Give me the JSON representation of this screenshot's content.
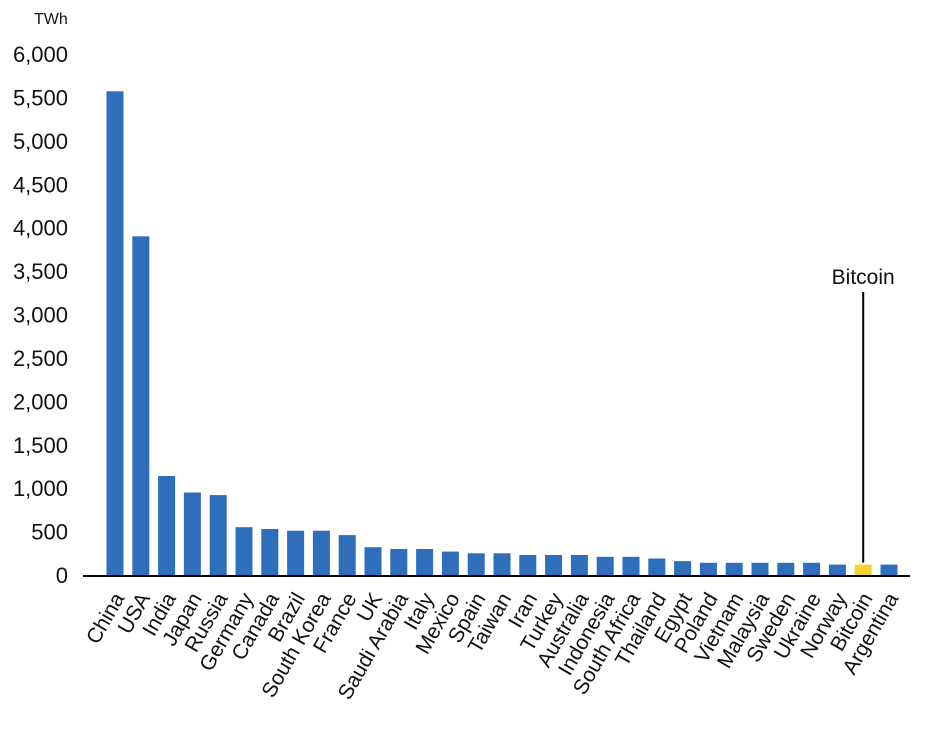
{
  "chart_data": {
    "type": "bar",
    "ylabel": "TWh",
    "ylim": [
      0,
      6000
    ],
    "yticks": [
      0,
      500,
      1000,
      1500,
      2000,
      2500,
      3000,
      3500,
      4000,
      4500,
      5000,
      5500,
      6000
    ],
    "ytick_labels": [
      "0",
      "500",
      "1,000",
      "1,500",
      "2,000",
      "2,500",
      "3,000",
      "3,500",
      "4,000",
      "4,500",
      "5,000",
      "5,500",
      "6,000"
    ],
    "grid": false,
    "legend": "none",
    "categories": [
      "China",
      "USA",
      "India",
      "Japan",
      "Russia",
      "Germany",
      "Canada",
      "Brazil",
      "South Korea",
      "France",
      "UK",
      "Saudi Arabia",
      "Italy",
      "Mexico",
      "Spain",
      "Taiwan",
      "Iran",
      "Turkey",
      "Australia",
      "Indonesia",
      "South Africa",
      "Thailand",
      "Egypt",
      "Poland",
      "Vietnam",
      "Malaysia",
      "Sweden",
      "Ukraine",
      "Norway",
      "Bitcoin",
      "Argentina"
    ],
    "values": [
      5570,
      3900,
      1140,
      950,
      920,
      550,
      530,
      510,
      510,
      460,
      320,
      300,
      300,
      270,
      250,
      250,
      230,
      230,
      230,
      210,
      210,
      190,
      160,
      140,
      140,
      140,
      140,
      140,
      120,
      120,
      120
    ],
    "colors": {
      "default": "#2f6eba",
      "Bitcoin": "#f2d437"
    },
    "annotations": [
      {
        "text": "Bitcoin",
        "target": "Bitcoin"
      }
    ]
  }
}
